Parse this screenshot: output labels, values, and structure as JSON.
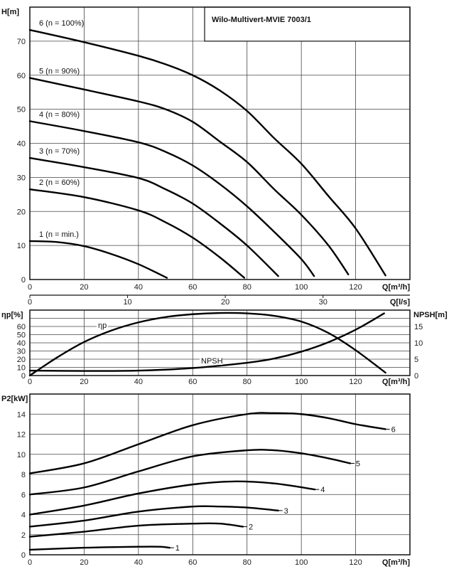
{
  "chart_data": [
    {
      "type": "line",
      "title": "Wilo-Multivert-MVIE 7003/1",
      "xlabel": "Q[m³/h]",
      "ylabel": "H[m]",
      "xlim": [
        0,
        140
      ],
      "ylim": [
        0,
        80
      ],
      "xticks": [
        0,
        20,
        40,
        60,
        80,
        100,
        120
      ],
      "yticks": [
        0,
        10,
        20,
        30,
        40,
        50,
        60,
        70
      ],
      "grid": true,
      "secondary_x": {
        "label": "Q[l/s]",
        "ticks": [
          0,
          10,
          20,
          30
        ]
      },
      "series": [
        {
          "name": "6 (n = 100%)",
          "x": [
            0,
            20,
            40,
            50,
            60,
            70,
            80,
            90,
            100,
            110,
            120,
            131
          ],
          "y": [
            73.3,
            69.7,
            65.7,
            63.2,
            60,
            55.5,
            49.5,
            41.5,
            34,
            24.5,
            15,
            1.2
          ]
        },
        {
          "name": "5 (n = 90%)",
          "x": [
            0,
            20,
            40,
            50,
            60,
            70,
            80,
            90,
            100,
            110,
            117.3
          ],
          "y": [
            59.2,
            55.8,
            52.3,
            50,
            46.3,
            40.5,
            34.5,
            26.5,
            19,
            10,
            1.5
          ]
        },
        {
          "name": "4 (n = 80%)",
          "x": [
            0,
            20,
            40,
            50,
            60,
            70,
            80,
            90,
            100,
            104.7
          ],
          "y": [
            46.5,
            43.6,
            40.3,
            37.5,
            33.5,
            28,
            21.5,
            14,
            6,
            1
          ]
        },
        {
          "name": "3 (n = 70%)",
          "x": [
            0,
            20,
            40,
            50,
            60,
            70,
            80,
            91.5
          ],
          "y": [
            35.7,
            33,
            29.8,
            26.5,
            22.3,
            16.5,
            10,
            1
          ]
        },
        {
          "name": "2 (n = 60%)",
          "x": [
            0,
            20,
            40,
            50,
            60,
            70,
            79
          ],
          "y": [
            26.5,
            24.2,
            20.3,
            16.8,
            12.3,
            6.5,
            0.5
          ]
        },
        {
          "name": "1 (n = min.)",
          "x": [
            0,
            10,
            20,
            30,
            40,
            50.5
          ],
          "y": [
            11.3,
            11,
            9.8,
            7.5,
            4.5,
            0.5
          ]
        }
      ]
    },
    {
      "type": "line",
      "xlabel": "Q[m³/h]",
      "ylabel": "ηp[%]",
      "y2label": "NPSH[m]",
      "xlim": [
        0,
        140
      ],
      "ylim": [
        0,
        80
      ],
      "y2lim": [
        0,
        20
      ],
      "xticks": [
        0,
        20,
        40,
        60,
        80,
        100,
        120
      ],
      "yticks": [
        0,
        10,
        20,
        30,
        40,
        50,
        60
      ],
      "y2ticks": [
        0,
        5,
        10,
        15
      ],
      "grid": true,
      "series": [
        {
          "name": "ηp",
          "axis": "left",
          "x": [
            0,
            10,
            20,
            30,
            40,
            50,
            60,
            70,
            80,
            90,
            100,
            110,
            120,
            131
          ],
          "y": [
            0,
            22,
            41,
            55,
            65,
            71.5,
            75,
            76.5,
            76,
            73,
            66,
            52,
            31,
            3.5
          ]
        },
        {
          "name": "NPSH",
          "axis": "right",
          "x": [
            0,
            20,
            40,
            60,
            80,
            90,
            100,
            110,
            120,
            130.5
          ],
          "y": [
            1.5,
            1.4,
            1.5,
            2.3,
            3.9,
            5.2,
            7.3,
            10.2,
            14,
            19
          ]
        }
      ]
    },
    {
      "type": "line",
      "xlabel": "Q[m³/h]",
      "ylabel": "P2[kW]",
      "xlim": [
        0,
        140
      ],
      "ylim": [
        0,
        16
      ],
      "xticks": [
        0,
        20,
        40,
        60,
        80,
        100,
        120
      ],
      "yticks": [
        0,
        2,
        4,
        6,
        8,
        10,
        12,
        14
      ],
      "grid": true,
      "series": [
        {
          "name": "6",
          "x": [
            0,
            20,
            40,
            60,
            80,
            90,
            100,
            110,
            120,
            131
          ],
          "y": [
            8.1,
            9.1,
            11,
            12.9,
            14,
            14.1,
            14,
            13.6,
            13,
            12.5
          ]
        },
        {
          "name": "5",
          "x": [
            0,
            20,
            40,
            60,
            80,
            90,
            100,
            110,
            118
          ],
          "y": [
            6,
            6.7,
            8.3,
            9.8,
            10.4,
            10.4,
            10.1,
            9.6,
            9.1
          ]
        },
        {
          "name": "4",
          "x": [
            0,
            20,
            40,
            60,
            75,
            90,
            105
          ],
          "y": [
            4,
            4.9,
            6.1,
            7,
            7.3,
            7.1,
            6.5
          ]
        },
        {
          "name": "3",
          "x": [
            0,
            20,
            40,
            60,
            70,
            80,
            91.5
          ],
          "y": [
            2.8,
            3.4,
            4.3,
            4.8,
            4.8,
            4.7,
            4.4
          ]
        },
        {
          "name": "2",
          "x": [
            0,
            20,
            40,
            60,
            70,
            78.5
          ],
          "y": [
            1.8,
            2.3,
            2.9,
            3.1,
            3.1,
            2.8
          ]
        },
        {
          "name": "1",
          "x": [
            0,
            20,
            40,
            48,
            51.5
          ],
          "y": [
            0.5,
            0.7,
            0.8,
            0.8,
            0.7
          ]
        }
      ]
    }
  ]
}
